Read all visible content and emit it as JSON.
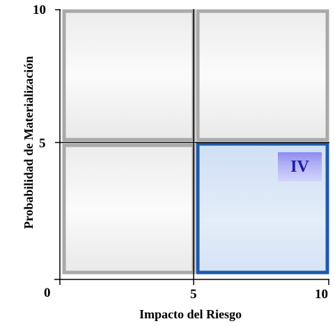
{
  "quadrant_label": "IV",
  "x_axis": {
    "title": "Impacto del Riesgo",
    "ticks": [
      "0",
      "5",
      "10"
    ]
  },
  "y_axis": {
    "title": "Probabilidad de Materialización",
    "ticks": [
      "10",
      "5"
    ]
  },
  "colors": {
    "highlight_border": "#1f5aa8",
    "highlight_fill": "#dbe7f8",
    "cell_border": "#a8a8a8",
    "label_text": "#1f1f9c"
  }
}
